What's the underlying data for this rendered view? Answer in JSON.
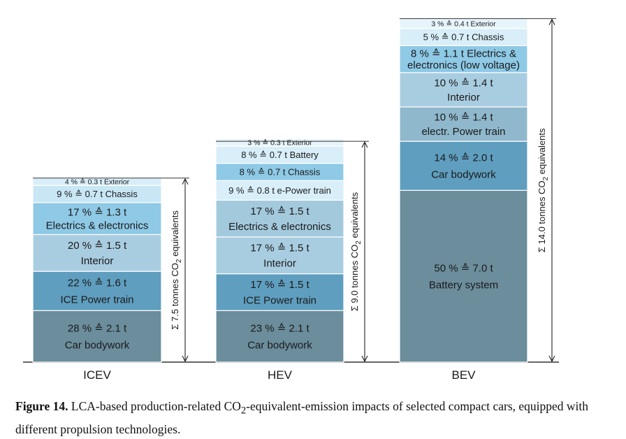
{
  "chart_data": {
    "type": "bar",
    "stacked": true,
    "unit": "t CO2-eq",
    "categories": [
      "ICEV",
      "HEV",
      "BEV"
    ],
    "bars": [
      {
        "category": "ICEV",
        "total": 7.5,
        "total_label": [
          "Σ 7.5 tonnes CO",
          "2",
          " equivalents"
        ],
        "segments": [
          {
            "value": 2.1,
            "percent": 28,
            "lines": [
              "28 % ≙ 2.1 t",
              "Car bodywork"
            ],
            "color": "#6b8d9c"
          },
          {
            "value": 1.6,
            "percent": 22,
            "lines": [
              "22 % ≙ 1.6 t",
              "ICE Power train"
            ],
            "color": "#5f9ebf"
          },
          {
            "value": 1.5,
            "percent": 20,
            "lines": [
              "20 % ≙ 1.5 t",
              "Interior"
            ],
            "color": "#a9cde0"
          },
          {
            "value": 1.3,
            "percent": 17,
            "lines": [
              "17 % ≙ 1.3 t",
              "Electrics & electronics"
            ],
            "color": "#8ec9e6"
          },
          {
            "value": 0.7,
            "percent": 9,
            "lines": [
              "9 % ≙ 0.7 t Chassis"
            ],
            "color": "#c8e6f4"
          },
          {
            "value": 0.3,
            "percent": 4,
            "lines": [
              "4 % ≙ 0.3 t Exterior"
            ],
            "color": "#d8eef9"
          }
        ]
      },
      {
        "category": "HEV",
        "total": 9.0,
        "total_label": [
          "Σ 9.0 tonnes CO",
          "2",
          " equivalents"
        ],
        "segments": [
          {
            "value": 2.1,
            "percent": 23,
            "lines": [
              "23 % ≙ 2.1 t",
              "Car bodywork"
            ],
            "color": "#6b8d9c"
          },
          {
            "value": 1.5,
            "percent": 17,
            "lines": [
              "17 % ≙ 1.5 t",
              "ICE Power train"
            ],
            "color": "#5f9ebf"
          },
          {
            "value": 1.5,
            "percent": 17,
            "lines": [
              "17 % ≙ 1.5 t",
              "Interior"
            ],
            "color": "#a9cde0"
          },
          {
            "value": 1.5,
            "percent": 17,
            "lines": [
              "17 % ≙ 1.5 t",
              "Electrics & electronics"
            ],
            "color": "#a3c9dd"
          },
          {
            "value": 0.8,
            "percent": 9,
            "lines": [
              "9 % ≙ 0.8 t e-Power train"
            ],
            "color": "#d8eef9"
          },
          {
            "value": 0.7,
            "percent": 8,
            "lines": [
              "8 % ≙ 0.7 t Chassis"
            ],
            "color": "#8ec9e6"
          },
          {
            "value": 0.7,
            "percent": 8,
            "lines": [
              "8 % ≙ 0.7 t Battery"
            ],
            "color": "#d8eef9"
          },
          {
            "value": 0.3,
            "percent": 3,
            "lines": [
              "3 % ≙ 0.3 t Exterior"
            ],
            "color": "#e6f4fb"
          }
        ]
      },
      {
        "category": "BEV",
        "total": 14.0,
        "total_label": [
          "Σ 14.0 tonnes CO",
          "2",
          " equivalents"
        ],
        "segments": [
          {
            "value": 7.0,
            "percent": 50,
            "lines": [
              "50 % ≙ 7.0 t",
              "Battery system"
            ],
            "color": "#6b8d9c"
          },
          {
            "value": 2.0,
            "percent": 14,
            "lines": [
              "14 % ≙ 2.0 t",
              "Car bodywork"
            ],
            "color": "#5f9ebf"
          },
          {
            "value": 1.4,
            "percent": 10,
            "lines": [
              "10 % ≙ 1.4 t",
              "electr. Power train"
            ],
            "color": "#8fb8cc"
          },
          {
            "value": 1.4,
            "percent": 10,
            "lines": [
              "10 % ≙ 1.4 t",
              "Interior"
            ],
            "color": "#a9cde0"
          },
          {
            "value": 1.1,
            "percent": 8,
            "lines": [
              "8 % ≙ 1.1 t Electrics &",
              "electronics (low voltage)"
            ],
            "color": "#8ec9e6"
          },
          {
            "value": 0.7,
            "percent": 5,
            "lines": [
              "5 % ≙ 0.7 t Chassis"
            ],
            "color": "#d8eef9"
          },
          {
            "value": 0.4,
            "percent": 3,
            "lines": [
              "3 % ≙ 0.4 t Exterior"
            ],
            "color": "#e6f4fb"
          }
        ]
      }
    ],
    "title": "",
    "xlabel": "",
    "ylabel": ""
  },
  "caption": {
    "label": "Figure 14.",
    "text_a": " LCA-based production-related CO",
    "sub": "2",
    "text_b": "-equivalent-emission impacts of selected compact cars, equipped with different propulsion technologies."
  }
}
